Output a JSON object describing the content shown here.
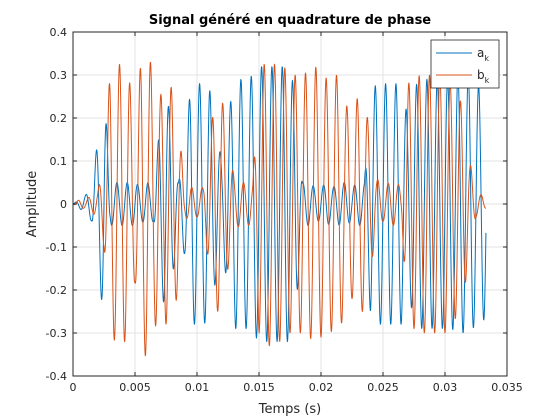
{
  "chart_data": {
    "type": "line",
    "title": "Signal généré en quadrature de phase",
    "xlabel": "Temps (s)",
    "ylabel": "Amplitude",
    "xlim": [
      0,
      0.035
    ],
    "ylim": [
      -0.4,
      0.4
    ],
    "xticks": [
      0,
      0.005,
      0.01,
      0.015,
      0.02,
      0.025,
      0.03,
      0.035
    ],
    "xtick_labels": [
      "0",
      "0.005",
      "0.01",
      "0.015",
      "0.02",
      "0.025",
      "0.03",
      "0.035"
    ],
    "yticks": [
      -0.4,
      -0.3,
      -0.2,
      -0.1,
      0,
      0.1,
      0.2,
      0.3,
      0.4
    ],
    "ytick_labels": [
      "-0.4",
      "-0.3",
      "-0.2",
      "-0.1",
      "0",
      "0.1",
      "0.2",
      "0.3",
      "0.4"
    ],
    "grid": true,
    "legend_position": "top-right",
    "carrier_frequency_hz": 1200,
    "series": [
      {
        "name": "a",
        "subscript": "k",
        "color": "#0072bd",
        "envelope_x": [
          0,
          0.0005,
          0.001,
          0.0015,
          0.002,
          0.0025,
          0.003,
          0.0035,
          0.004,
          0.0045,
          0.005,
          0.0055,
          0.006,
          0.0065,
          0.007,
          0.0075,
          0.008,
          0.0085,
          0.009,
          0.0095,
          0.01,
          0.0105,
          0.011,
          0.0115,
          0.012,
          0.0125,
          0.013,
          0.0135,
          0.014,
          0.0145,
          0.015,
          0.0155,
          0.016,
          0.0165,
          0.017,
          0.0175,
          0.018,
          0.0185,
          0.019,
          0.0195,
          0.02,
          0.0205,
          0.021,
          0.0215,
          0.022,
          0.0225,
          0.023,
          0.0235,
          0.024,
          0.0245,
          0.025,
          0.0255,
          0.026,
          0.0265,
          0.027,
          0.0275,
          0.028,
          0.0285,
          0.029,
          0.0295,
          0.03,
          0.0305,
          0.031,
          0.0315,
          0.032,
          0.0325,
          0.033,
          0.0333
        ],
        "envelope": [
          0.0,
          0.01,
          0.02,
          0.04,
          0.15,
          0.27,
          0.05,
          0.05,
          0.05,
          0.05,
          0.05,
          0.04,
          0.05,
          0.04,
          0.18,
          0.26,
          0.18,
          0.05,
          0.12,
          0.28,
          0.28,
          0.28,
          0.27,
          0.18,
          0.1,
          0.2,
          0.29,
          0.29,
          0.29,
          0.3,
          0.32,
          0.32,
          0.32,
          0.32,
          0.32,
          0.32,
          0.24,
          0.05,
          0.05,
          0.04,
          0.04,
          0.05,
          0.04,
          0.05,
          0.05,
          0.04,
          0.05,
          0.05,
          0.26,
          0.28,
          0.28,
          0.28,
          0.28,
          0.28,
          0.2,
          0.27,
          0.29,
          0.29,
          0.29,
          0.29,
          0.29,
          0.29,
          0.3,
          0.3,
          0.3,
          0.28,
          0.27,
          0.27
        ]
      },
      {
        "name": "b",
        "subscript": "k",
        "color": "#d95319",
        "envelope_x": [
          0,
          0.0005,
          0.001,
          0.0015,
          0.002,
          0.0025,
          0.003,
          0.0035,
          0.004,
          0.0045,
          0.005,
          0.0055,
          0.006,
          0.0065,
          0.007,
          0.0075,
          0.008,
          0.0085,
          0.009,
          0.0095,
          0.01,
          0.0105,
          0.011,
          0.0115,
          0.012,
          0.0125,
          0.013,
          0.0135,
          0.014,
          0.0145,
          0.015,
          0.0155,
          0.016,
          0.0165,
          0.017,
          0.0175,
          0.018,
          0.0185,
          0.019,
          0.0195,
          0.02,
          0.0205,
          0.021,
          0.0215,
          0.022,
          0.0225,
          0.023,
          0.0235,
          0.024,
          0.0245,
          0.025,
          0.0255,
          0.026,
          0.0265,
          0.027,
          0.0275,
          0.028,
          0.0285,
          0.029,
          0.0295,
          0.03,
          0.0305,
          0.031,
          0.0315,
          0.032,
          0.0325,
          0.033,
          0.0333
        ],
        "envelope": [
          0.0,
          0.01,
          0.01,
          0.02,
          0.03,
          0.1,
          0.31,
          0.32,
          0.33,
          0.3,
          0.18,
          0.34,
          0.36,
          0.3,
          0.25,
          0.28,
          0.27,
          0.2,
          0.03,
          0.04,
          0.03,
          0.04,
          0.15,
          0.25,
          0.25,
          0.15,
          0.06,
          0.05,
          0.05,
          0.05,
          0.3,
          0.33,
          0.33,
          0.32,
          0.32,
          0.3,
          0.3,
          0.3,
          0.31,
          0.32,
          0.31,
          0.29,
          0.3,
          0.3,
          0.23,
          0.22,
          0.25,
          0.25,
          0.15,
          0.06,
          0.04,
          0.05,
          0.05,
          0.04,
          0.28,
          0.29,
          0.3,
          0.3,
          0.3,
          0.3,
          0.3,
          0.28,
          0.26,
          0.22,
          0.1,
          0.03,
          0.02,
          0.01
        ]
      }
    ]
  }
}
